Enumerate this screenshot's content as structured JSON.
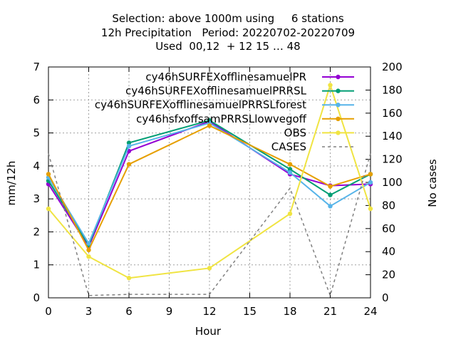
{
  "title_lines": [
    "Selection: above 1000m using     6 stations",
    "12h Precipitation   Period: 20220702-20220709",
    "Used  00,12  + 12 15 … 48"
  ],
  "chart_data": {
    "type": "line",
    "title": "Selection: above 1000m using 6 stations / 12h Precipitation Period: 20220702-20220709 / Used 00,12 + 12 15 … 48",
    "xlabel": "Hour",
    "ylabel": "mm/12h",
    "y2label": "No cases",
    "x": [
      0,
      3,
      6,
      12,
      18,
      21,
      24
    ],
    "xlim": [
      0,
      24
    ],
    "ylim": [
      0,
      7
    ],
    "y2lim": [
      0,
      200
    ],
    "xticks": [
      0,
      3,
      6,
      9,
      12,
      15,
      18,
      21,
      24
    ],
    "yticks": [
      0,
      1,
      2,
      3,
      4,
      5,
      6,
      7
    ],
    "y2ticks": [
      0,
      20,
      40,
      60,
      80,
      100,
      120,
      140,
      160,
      180,
      200
    ],
    "grid": true,
    "legend_position": "top-right",
    "series": [
      {
        "name": "cy46h_SURFEX_offline_samuelPR",
        "legend_label": "cy46hSURFEXofflinesamuelPR",
        "color": "#9400d3",
        "values": [
          3.45,
          1.55,
          4.45,
          5.35,
          3.75,
          3.4,
          3.45
        ]
      },
      {
        "name": "cy46h_SURFEX_offline_samuelPR_RSL",
        "legend_label": "cy46hSURFEXofflinesamuelPRRSL",
        "color": "#009e73",
        "values": [
          3.55,
          1.6,
          4.7,
          5.38,
          3.9,
          3.12,
          3.75
        ]
      },
      {
        "name": "cy46h_SURFEX_offline_samuelPR_RSL_forest",
        "legend_label": "cy46hSURFEXofflinesamuelPRRSLforest",
        "color": "#56b4e9",
        "values": [
          3.65,
          1.65,
          4.6,
          5.3,
          3.8,
          2.78,
          3.5
        ]
      },
      {
        "name": "cy46h_sfxoff_samPR_RSL_lowvegoff",
        "legend_label": "cy46hsfxoffsamPRRSLlowvegoff",
        "color": "#e69f00",
        "values": [
          3.75,
          1.45,
          4.05,
          5.22,
          4.05,
          3.38,
          3.75
        ]
      },
      {
        "name": "OBS",
        "legend_label": "OBS",
        "color": "#f0e442",
        "values": [
          2.7,
          1.25,
          0.6,
          0.9,
          2.55,
          6.45,
          2.7
        ]
      },
      {
        "name": "CASES",
        "legend_label": "CASES",
        "color": "#808080",
        "axis": "y2",
        "dashed": true,
        "values": [
          125,
          2,
          3,
          3,
          95,
          2,
          125
        ]
      }
    ]
  }
}
